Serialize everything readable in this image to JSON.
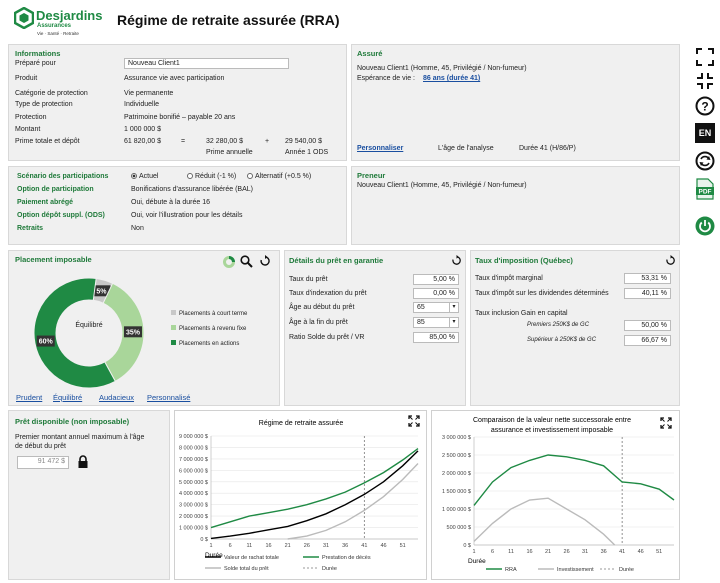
{
  "brand": {
    "name": "Desjardins",
    "sub": "Assurances",
    "tagline": "Vie · Santé · Retraite"
  },
  "page_title": "Régime de retraite assurée (RRA)",
  "info": {
    "title": "Informations",
    "prepared_label": "Préparé pour",
    "prepared_value": "Nouveau Client1",
    "rows": [
      {
        "label": "Produit",
        "value": "Assurance vie avec participation"
      },
      {
        "label": "Catégorie de protection",
        "value": "Vie permanente"
      },
      {
        "label": "Type de protection",
        "value": "Individuelle"
      },
      {
        "label": "Protection",
        "value": "Patrimoine bonifié – payable 20 ans"
      },
      {
        "label": "Montant",
        "value": "1 000 000 $"
      }
    ],
    "prime_label": "Prime totale et dépôt",
    "prime_total": "61 820,00 $",
    "eq": "=",
    "prime_annuelle": "32 280,00 $",
    "plus": "+",
    "prime_ods": "29 540,00 $",
    "prime_annuelle_label": "Prime annuelle",
    "ods_label": "Année 1 ODS"
  },
  "assure": {
    "title": "Assuré",
    "line1": "Nouveau Client1 (Homme, 45, Privilégié / Non-fumeur)",
    "esp_label": "Espérance de vie :",
    "esp_link": "86 ans (durée 41)",
    "personnaliser": "Personnaliser",
    "age_analyse": "L'âge de l'analyse",
    "duree_value": "Durée 41  (H/86/P)"
  },
  "scenario": {
    "title": "Scénario des participations",
    "options": [
      "Actuel",
      "Réduit (-1 %)",
      "Alternatif (+0.5 %)"
    ],
    "rows": [
      {
        "label": "Option de participation",
        "value": "Bonifications d'assurance libérée (BAL)"
      },
      {
        "label": "Paiement abrégé",
        "value": "Oui, débute à la durée 16"
      },
      {
        "label": "Option dépôt suppl. (ODS)",
        "value": "Oui, voir l'illustration pour les détails"
      },
      {
        "label": "Retraits",
        "value": "Non"
      }
    ]
  },
  "preneur": {
    "title": "Preneur",
    "line1": "Nouveau Client1 (Homme, 45, Privilégié / Non-fumeur)"
  },
  "placement": {
    "title": "Placement imposable",
    "center": "Équilibré",
    "slices": [
      {
        "label": "Placements à court terme",
        "value": 5,
        "text": "5%",
        "color": "#c8c8c8"
      },
      {
        "label": "Placements à revenu fixe",
        "value": 35,
        "text": "35%",
        "color": "#a9d69a"
      },
      {
        "label": "Placements en actions",
        "value": 60,
        "text": "60%",
        "color": "#1f8a44"
      }
    ],
    "links": [
      "Prudent",
      "Équilibré",
      "Audacieux",
      "Personnalisé"
    ]
  },
  "pret": {
    "title": "Détails du prêt en garantie",
    "rows": [
      {
        "label": "Taux du prêt",
        "value": "5,00 %"
      },
      {
        "label": "Taux d'indexation du prêt",
        "value": "0,00 %"
      },
      {
        "label": "Âge au début du prêt",
        "value": "65"
      },
      {
        "label": "Âge à la fin du prêt",
        "value": "85"
      },
      {
        "label": "Ratio Solde du prêt / VR",
        "value": "85,00 %"
      }
    ]
  },
  "taux": {
    "title": "Taux d'imposition (Québec)",
    "rows": [
      {
        "label": "Taux d'impôt marginal",
        "value": "53,31 %"
      },
      {
        "label": "Taux d'impôt sur les dividendes déterminés",
        "value": "40,11 %"
      }
    ],
    "gain_label": "Taux inclusion Gain en capital",
    "gain_rows": [
      {
        "label": "Premiers 250K$ de GC",
        "value": "50,00 %"
      },
      {
        "label": "Supérieur à 250K$ de GC",
        "value": "66,67 %"
      }
    ]
  },
  "pretdispo": {
    "title": "Prêt disponible (non imposable)",
    "text1": "Premier montant annuel maximum à l'âge",
    "text2": "de début du prêt",
    "value": "91 472 $"
  },
  "right_icons": [
    "expand-icon",
    "collapse-icon",
    "help-icon",
    "language-icon",
    "refresh-icon",
    "pdf-icon",
    "power-icon"
  ],
  "lang": "EN",
  "pdf": "PDF",
  "chart_data": [
    {
      "type": "line",
      "title": "Régime de retraite assurée",
      "xlabel": "Durée",
      "ylabel": "",
      "x": [
        1,
        6,
        11,
        16,
        21,
        26,
        31,
        36,
        41,
        46,
        51
      ],
      "xlim": [
        1,
        55
      ],
      "ylim": [
        0,
        9000000
      ],
      "yticks": [
        "0 $",
        "1 000 000 $",
        "2 000 000 $",
        "3 000 000 $",
        "4 000 000 $",
        "5 000 000 $",
        "6 000 000 $",
        "7 000 000 $",
        "8 000 000 $",
        "9 000 000 $"
      ],
      "marker_x": 41,
      "series": [
        {
          "name": "Valeur de rachat totale",
          "color": "#000000",
          "points": [
            [
              1,
              50000
            ],
            [
              6,
              250000
            ],
            [
              11,
              500000
            ],
            [
              16,
              800000
            ],
            [
              21,
              1100000
            ],
            [
              26,
              1600000
            ],
            [
              31,
              2200000
            ],
            [
              36,
              3000000
            ],
            [
              41,
              3900000
            ],
            [
              46,
              5000000
            ],
            [
              51,
              6400000
            ],
            [
              55,
              7700000
            ]
          ]
        },
        {
          "name": "Prestation de décès",
          "color": "#1f8a44",
          "points": [
            [
              1,
              1000000
            ],
            [
              6,
              1500000
            ],
            [
              11,
              2000000
            ],
            [
              16,
              2300000
            ],
            [
              21,
              2600000
            ],
            [
              26,
              3000000
            ],
            [
              31,
              3500000
            ],
            [
              36,
              4100000
            ],
            [
              41,
              4900000
            ],
            [
              46,
              5800000
            ],
            [
              51,
              6900000
            ],
            [
              55,
              7900000
            ]
          ]
        },
        {
          "name": "Solde total du prêt",
          "color": "#bbbbbb",
          "points": [
            [
              21,
              0
            ],
            [
              26,
              250000
            ],
            [
              31,
              750000
            ],
            [
              36,
              1500000
            ],
            [
              41,
              2500000
            ],
            [
              46,
              3700000
            ],
            [
              51,
              5200000
            ],
            [
              55,
              6600000
            ]
          ]
        }
      ],
      "legend": [
        "Valeur de rachat totale",
        "Prestation de décès",
        "Solde total du prêt",
        "Durée"
      ]
    },
    {
      "type": "line",
      "title": "Comparaison de la valeur nette successorale entre assurance et investissement imposable",
      "xlabel": "Durée",
      "x": [
        1,
        6,
        11,
        16,
        21,
        26,
        31,
        36,
        41,
        46,
        51
      ],
      "xlim": [
        1,
        55
      ],
      "ylim": [
        0,
        3000000
      ],
      "yticks": [
        "0 $",
        "500 000 $",
        "1 000 000 $",
        "1 500 000 $",
        "2 000 000 $",
        "2 500 000 $",
        "3 000 000 $"
      ],
      "marker_x": 41,
      "series": [
        {
          "name": "RRA",
          "color": "#1f8a44",
          "points": [
            [
              1,
              1100000
            ],
            [
              6,
              1750000
            ],
            [
              11,
              2150000
            ],
            [
              16,
              2350000
            ],
            [
              21,
              2500000
            ],
            [
              26,
              2450000
            ],
            [
              31,
              2350000
            ],
            [
              36,
              2200000
            ],
            [
              41,
              1750000
            ],
            [
              46,
              1700000
            ],
            [
              51,
              1550000
            ],
            [
              55,
              1250000
            ]
          ]
        },
        {
          "name": "Investissement",
          "color": "#bbbbbb",
          "points": [
            [
              1,
              100000
            ],
            [
              6,
              600000
            ],
            [
              11,
              1000000
            ],
            [
              16,
              1250000
            ],
            [
              21,
              1300000
            ],
            [
              26,
              1000000
            ],
            [
              31,
              700000
            ],
            [
              36,
              300000
            ],
            [
              39,
              0
            ]
          ]
        }
      ],
      "legend": [
        "RRA",
        "Investissement",
        "Durée"
      ]
    }
  ]
}
